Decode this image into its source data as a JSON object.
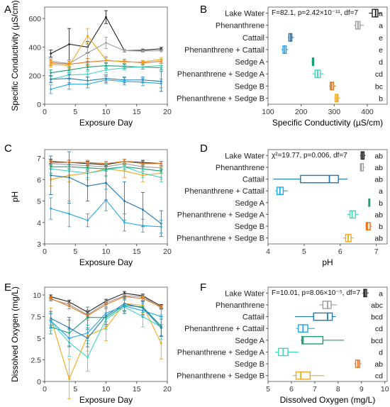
{
  "colors": {
    "lake_water": "#222222",
    "phenanthrene": "#9e9e9e",
    "cattail": "#1f78b4",
    "phen_cattail": "#1fa9e6",
    "sedge_a": "#1b9e77",
    "phen_sedge_a": "#3fd6c0",
    "sedge_b": "#e8731a",
    "phen_sedge_b": "#f0a81e"
  },
  "chart_data": [
    {
      "panel": "A",
      "type": "line",
      "xlabel": "Exposure Day",
      "ylabel": "Specific Conductivity (µS/cm)",
      "xlim": [
        0,
        20
      ],
      "ylim": [
        0,
        680
      ],
      "xticks": [
        0,
        5,
        10,
        15,
        20
      ],
      "yticks": [
        0,
        200,
        400,
        600
      ],
      "x": [
        1,
        4,
        7,
        10,
        13,
        16,
        19
      ],
      "series": [
        {
          "color_key": "lake_water",
          "values": [
            355,
            420,
            400,
            610,
            375,
            378,
            388
          ],
          "err": [
            25,
            110,
            40,
            45,
            10,
            8,
            10
          ]
        },
        {
          "color_key": "phenanthrene",
          "values": [
            300,
            285,
            360,
            430,
            375,
            372,
            375
          ],
          "err": [
            20,
            25,
            60,
            40,
            10,
            8,
            8
          ]
        },
        {
          "color_key": "sedge_b",
          "values": [
            290,
            280,
            295,
            305,
            300,
            290,
            300
          ],
          "err": [
            20,
            20,
            25,
            20,
            15,
            12,
            12
          ]
        },
        {
          "color_key": "phen_sedge_b",
          "values": [
            280,
            270,
            480,
            310,
            295,
            295,
            315
          ],
          "err": [
            20,
            20,
            50,
            25,
            12,
            12,
            12
          ]
        },
        {
          "color_key": "sedge_a",
          "values": [
            220,
            240,
            260,
            270,
            265,
            260,
            255
          ],
          "err": [
            20,
            20,
            20,
            20,
            15,
            15,
            15
          ]
        },
        {
          "color_key": "phen_sedge_a",
          "values": [
            175,
            205,
            210,
            240,
            255,
            262,
            270
          ],
          "err": [
            20,
            25,
            20,
            20,
            15,
            15,
            15
          ]
        },
        {
          "color_key": "cattail",
          "values": [
            175,
            180,
            165,
            180,
            170,
            170,
            160
          ],
          "err": [
            25,
            30,
            25,
            25,
            20,
            20,
            70
          ]
        },
        {
          "color_key": "phen_cattail",
          "values": [
            105,
            140,
            140,
            170,
            160,
            155,
            145
          ],
          "err": [
            30,
            35,
            25,
            25,
            25,
            25,
            30
          ]
        }
      ]
    },
    {
      "panel": "B",
      "type": "box",
      "annotation": "F=82.1, p=2.42×10⁻¹¹, df=7",
      "xlabel": "Specific Conductivity (µS/cm)",
      "xlim": [
        100,
        460
      ],
      "xticks": [
        100,
        200,
        300,
        400
      ],
      "categories": [
        "Lake Water",
        "Phenanthrene",
        "Cattail",
        "Phenanthrene + Cattail",
        "Sedge A",
        "Phenanthrene + Sedge A",
        "Sedge B",
        "Phenanthrene + Sedge B"
      ],
      "boxes": [
        {
          "color_key": "lake_water",
          "min": 405,
          "q1": 415,
          "median": 425,
          "q3": 432,
          "max": 440
        },
        {
          "color_key": "phenanthrene",
          "min": 360,
          "q1": 365,
          "median": 372,
          "q3": 378,
          "max": 390
        },
        {
          "color_key": "cattail",
          "min": 160,
          "q1": 163,
          "median": 168,
          "q3": 172,
          "max": 178
        },
        {
          "color_key": "phen_cattail",
          "min": 140,
          "q1": 145,
          "median": 150,
          "q3": 155,
          "max": 160
        },
        {
          "color_key": "sedge_a",
          "min": 232,
          "q1": 234,
          "median": 236,
          "q3": 238,
          "max": 240
        },
        {
          "color_key": "phen_sedge_a",
          "min": 235,
          "q1": 242,
          "median": 250,
          "q3": 258,
          "max": 268
        },
        {
          "color_key": "sedge_b",
          "min": 285,
          "q1": 288,
          "median": 292,
          "q3": 298,
          "max": 305
        },
        {
          "color_key": "phen_sedge_b",
          "min": 300,
          "q1": 303,
          "median": 308,
          "q3": 312,
          "max": 318
        }
      ],
      "letters": [
        "a",
        "a",
        "e",
        "e",
        "d",
        "cd",
        "bc",
        "b"
      ]
    },
    {
      "panel": "C",
      "type": "line",
      "xlabel": "Exposure Day",
      "ylabel": "pH",
      "xlim": [
        0,
        20
      ],
      "ylim": [
        3,
        7.4
      ],
      "xticks": [
        0,
        5,
        10,
        15,
        20
      ],
      "yticks": [
        3,
        4,
        5,
        6,
        7
      ],
      "x": [
        1,
        4,
        7,
        10,
        13,
        16,
        19
      ],
      "series": [
        {
          "color_key": "lake_water",
          "values": [
            6.85,
            6.8,
            6.75,
            6.7,
            6.85,
            6.8,
            6.75
          ],
          "err": [
            0.1,
            0.1,
            0.1,
            0.1,
            0.1,
            0.1,
            0.1
          ]
        },
        {
          "color_key": "phenanthrene",
          "values": [
            6.75,
            6.7,
            6.65,
            6.6,
            6.75,
            6.6,
            6.55
          ],
          "err": [
            0.1,
            0.1,
            0.1,
            0.1,
            0.1,
            0.1,
            0.1
          ]
        },
        {
          "color_key": "sedge_b",
          "values": [
            6.8,
            6.8,
            6.8,
            6.75,
            6.85,
            6.75,
            6.75
          ],
          "err": [
            0.1,
            0.1,
            0.1,
            0.1,
            0.1,
            0.1,
            0.1
          ]
        },
        {
          "color_key": "phen_sedge_b",
          "values": [
            6.0,
            6.2,
            6.3,
            6.5,
            6.4,
            6.2,
            6.3
          ],
          "err": [
            0.3,
            0.3,
            0.3,
            0.3,
            0.3,
            0.3,
            0.3
          ]
        },
        {
          "color_key": "sedge_a",
          "values": [
            6.6,
            6.6,
            6.55,
            6.5,
            6.6,
            6.5,
            6.4
          ],
          "err": [
            0.1,
            0.1,
            0.1,
            0.1,
            0.1,
            0.1,
            0.1
          ]
        },
        {
          "color_key": "phen_sedge_a",
          "values": [
            6.5,
            6.4,
            6.3,
            6.45,
            6.6,
            6.3,
            6.1
          ],
          "err": [
            0.2,
            0.2,
            0.2,
            0.3,
            0.2,
            0.2,
            0.2
          ]
        },
        {
          "color_key": "cattail",
          "values": [
            6.2,
            6.1,
            5.7,
            5.85,
            5.0,
            4.6,
            3.95
          ],
          "err": [
            0.9,
            1.2,
            0.7,
            0.8,
            0.9,
            0.8,
            0.6
          ]
        },
        {
          "color_key": "phen_cattail",
          "values": [
            4.65,
            4.4,
            4.1,
            5.05,
            4.0,
            3.85,
            3.8
          ],
          "err": [
            0.5,
            0.6,
            0.3,
            0.5,
            0.4,
            0.3,
            0.3
          ]
        }
      ]
    },
    {
      "panel": "D",
      "type": "box",
      "annotation": "χ²=19.77, p=0.006, df=7",
      "xlabel": "pH",
      "xlim": [
        4,
        7.3
      ],
      "xticks": [
        4,
        5,
        6,
        7
      ],
      "categories": [
        "Lake Water",
        "Phenanthrene",
        "Cattail",
        "Phenanthrene + Cattail",
        "Sedge A",
        "Phenanthrene + Sedge A",
        "Sedge B",
        "Phenanthrene + Sedge B"
      ],
      "boxes": [
        {
          "color_key": "lake_water",
          "min": 6.55,
          "q1": 6.58,
          "median": 6.62,
          "q3": 6.66,
          "max": 6.7
        },
        {
          "color_key": "phenanthrene",
          "min": 6.55,
          "q1": 6.56,
          "median": 6.58,
          "q3": 6.64,
          "max": 6.68
        },
        {
          "color_key": "cattail",
          "min": 4.15,
          "q1": 4.9,
          "median": 5.7,
          "q3": 5.95,
          "max": 6.2
        },
        {
          "color_key": "phen_cattail",
          "min": 4.2,
          "q1": 4.25,
          "median": 4.33,
          "q3": 4.42,
          "max": 4.55
        },
        {
          "color_key": "sedge_a",
          "min": 6.78,
          "q1": 6.79,
          "median": 6.8,
          "q3": 6.81,
          "max": 6.82
        },
        {
          "color_key": "phen_sedge_a",
          "min": 6.2,
          "q1": 6.27,
          "median": 6.33,
          "q3": 6.42,
          "max": 6.5
        },
        {
          "color_key": "sedge_b",
          "min": 6.7,
          "q1": 6.72,
          "median": 6.75,
          "q3": 6.83,
          "max": 6.88
        },
        {
          "color_key": "phen_sedge_b",
          "min": 6.08,
          "q1": 6.15,
          "median": 6.22,
          "q3": 6.3,
          "max": 6.38
        }
      ],
      "letters": [
        "ab",
        "ab",
        "ab",
        "a",
        "b",
        "ab",
        "b",
        "ab"
      ]
    },
    {
      "panel": "E",
      "type": "line",
      "xlabel": "Exposure Day",
      "ylabel": "Dissolved Oxygen (mg/L)",
      "xlim": [
        0,
        20
      ],
      "ylim": [
        0,
        10.9
      ],
      "xticks": [
        0,
        5,
        10,
        15,
        20
      ],
      "yticks": [
        0.0,
        2.5,
        5.0,
        7.5,
        10.0
      ],
      "x": [
        1,
        4,
        7,
        10,
        13,
        16,
        19
      ],
      "series": [
        {
          "color_key": "lake_water",
          "values": [
            9.8,
            9.2,
            8.0,
            9.3,
            10.2,
            9.9,
            8.7
          ],
          "err": [
            0.2,
            0.2,
            0.2,
            0.2,
            0.2,
            0.2,
            0.2
          ]
        },
        {
          "color_key": "phenanthrene",
          "values": [
            9.5,
            8.9,
            7.7,
            9.1,
            9.9,
            9.8,
            8.5
          ],
          "err": [
            0.2,
            0.2,
            0.2,
            0.2,
            0.2,
            0.2,
            0.2
          ]
        },
        {
          "color_key": "sedge_b",
          "values": [
            9.6,
            8.7,
            7.6,
            8.9,
            9.8,
            9.6,
            8.6
          ],
          "err": [
            0.2,
            0.3,
            0.3,
            0.3,
            0.2,
            0.2,
            0.2
          ]
        },
        {
          "color_key": "phen_sedge_b",
          "values": [
            7.3,
            0.3,
            5.3,
            6.2,
            9.0,
            8.8,
            4.4
          ],
          "err": [
            1.2,
            2.3,
            1.8,
            1.5,
            0.8,
            1.0,
            1.8
          ]
        },
        {
          "color_key": "sedge_a",
          "values": [
            6.3,
            5.6,
            7.4,
            7.4,
            8.8,
            8.6,
            6.4
          ],
          "err": [
            0.8,
            1.5,
            1.2,
            1.0,
            0.7,
            0.6,
            1.1
          ]
        },
        {
          "color_key": "phen_sedge_a",
          "values": [
            6.9,
            4.5,
            2.8,
            7.2,
            8.6,
            7.5,
            6.3
          ],
          "err": [
            1.0,
            1.6,
            1.6,
            1.2,
            0.8,
            1.2,
            1.4
          ]
        },
        {
          "color_key": "cattail",
          "values": [
            7.3,
            6.2,
            5.0,
            7.6,
            9.0,
            8.5,
            6.2
          ],
          "err": [
            0.8,
            1.2,
            1.0,
            1.0,
            0.8,
            0.8,
            1.0
          ]
        },
        {
          "color_key": "phen_cattail",
          "values": [
            7.0,
            5.0,
            5.6,
            7.9,
            8.7,
            8.2,
            7.5
          ],
          "err": [
            0.8,
            1.0,
            0.9,
            1.0,
            0.8,
            0.8,
            0.9
          ]
        }
      ]
    },
    {
      "panel": "F",
      "type": "box",
      "annotation": "F=10.01, p=8.06×10⁻⁵, df=7",
      "xlabel": "Dissolved Oxygen (mg/L)",
      "xlim": [
        5,
        10.1
      ],
      "xticks": [
        5,
        6,
        7,
        8,
        9,
        10
      ],
      "categories": [
        "Lake Water",
        "Phenanthrene",
        "Cattail",
        "Phenanthrene + Cattail",
        "Sedge A",
        "Phenanthrene + Sedge A",
        "Sedge B",
        "Phenanthrene + Sedge B"
      ],
      "boxes": [
        {
          "color_key": "lake_water",
          "min": 9.05,
          "q1": 9.1,
          "median": 9.15,
          "q3": 9.22,
          "max": 9.3
        },
        {
          "color_key": "phenanthrene",
          "min": 7.2,
          "q1": 7.35,
          "median": 7.55,
          "q3": 7.7,
          "max": 7.95
        },
        {
          "color_key": "cattail",
          "min": 6.15,
          "q1": 6.95,
          "median": 7.55,
          "q3": 7.75,
          "max": 7.9
        },
        {
          "color_key": "phen_cattail",
          "min": 6.2,
          "q1": 6.3,
          "median": 6.5,
          "q3": 6.7,
          "max": 7.0
        },
        {
          "color_key": "sedge_a",
          "min": 6.4,
          "q1": 6.45,
          "median": 6.5,
          "q3": 7.35,
          "max": 8.25
        },
        {
          "color_key": "phen_sedge_a",
          "min": 5.3,
          "q1": 5.45,
          "median": 5.65,
          "q3": 5.85,
          "max": 6.3
        },
        {
          "color_key": "sedge_b",
          "min": 8.7,
          "q1": 8.75,
          "median": 8.85,
          "q3": 8.92,
          "max": 9.0
        },
        {
          "color_key": "phen_sedge_b",
          "min": 6.05,
          "q1": 6.2,
          "median": 6.4,
          "q3": 6.8,
          "max": 7.4
        }
      ],
      "letters": [
        "a",
        "abc",
        "bcd",
        "cd",
        "bcd",
        "d",
        "ab",
        "cd"
      ]
    }
  ]
}
